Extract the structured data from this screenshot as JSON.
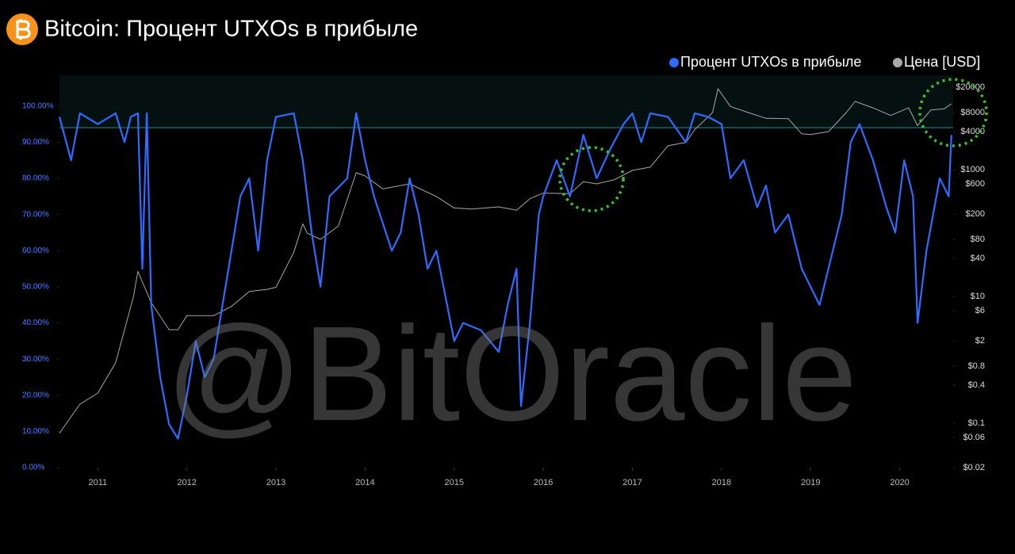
{
  "chart_data": {
    "type": "line",
    "title": "Bitcoin: Процент UTXOs в прибыле",
    "watermark": "@BitOracle",
    "xlim": [
      2010.57,
      2020.6
    ],
    "xticks": [
      2011,
      2012,
      2013,
      2014,
      2015,
      2016,
      2017,
      2018,
      2019,
      2020
    ],
    "ylim": [
      0,
      108.5
    ],
    "yticks": [
      {
        "value": 0,
        "label": "0.00%"
      },
      {
        "value": 10,
        "label": "10.00%"
      },
      {
        "value": 20,
        "label": "20.00%"
      },
      {
        "value": 30,
        "label": "30.00%"
      },
      {
        "value": 40,
        "label": "40.00%"
      },
      {
        "value": 50,
        "label": "50.00%"
      },
      {
        "value": 60,
        "label": "60.00%"
      },
      {
        "value": 70,
        "label": "70.00%"
      },
      {
        "value": 80,
        "label": "80.00%"
      },
      {
        "value": 90,
        "label": "90.00%"
      },
      {
        "value": 100,
        "label": "100.00%"
      }
    ],
    "y2lim": [
      0.02,
      31000
    ],
    "y2scale": "log",
    "y2ticks": [
      {
        "value": 0.02,
        "label": "$0.02"
      },
      {
        "value": 0.06,
        "label": "$0.06"
      },
      {
        "value": 0.1,
        "label": "$0.1"
      },
      {
        "value": 0.4,
        "label": "$0.4"
      },
      {
        "value": 0.8,
        "label": "$0.8"
      },
      {
        "value": 2,
        "label": "$2"
      },
      {
        "value": 6,
        "label": "$6"
      },
      {
        "value": 10,
        "label": "$10"
      },
      {
        "value": 40,
        "label": "$40"
      },
      {
        "value": 80,
        "label": "$80"
      },
      {
        "value": 200,
        "label": "$200"
      },
      {
        "value": 600,
        "label": "$600"
      },
      {
        "value": 1000,
        "label": "$1000"
      },
      {
        "value": 4000,
        "label": "$4000"
      },
      {
        "value": 8000,
        "label": "$8000"
      },
      {
        "value": 20000,
        "label": "$20000"
      }
    ],
    "threshold": 94,
    "threshold_color": "#2a8a8c",
    "legend": "top-right",
    "series": [
      {
        "name": "Процент UTXOs в прибыле",
        "color": "#2f6bff",
        "x": [
          2010.57,
          2010.7,
          2010.8,
          2011.0,
          2011.2,
          2011.3,
          2011.37,
          2011.45,
          2011.5,
          2011.55,
          2011.6,
          2011.7,
          2011.8,
          2011.9,
          2012.0,
          2012.1,
          2012.2,
          2012.3,
          2012.4,
          2012.5,
          2012.6,
          2012.7,
          2012.8,
          2012.9,
          2013.0,
          2013.2,
          2013.3,
          2013.4,
          2013.5,
          2013.6,
          2013.8,
          2013.9,
          2014.0,
          2014.1,
          2014.3,
          2014.4,
          2014.5,
          2014.6,
          2014.7,
          2014.8,
          2015.0,
          2015.1,
          2015.3,
          2015.5,
          2015.6,
          2015.7,
          2015.75,
          2015.85,
          2015.95,
          2016.0,
          2016.15,
          2016.3,
          2016.45,
          2016.6,
          2016.75,
          2016.9,
          2017.0,
          2017.1,
          2017.2,
          2017.4,
          2017.6,
          2017.7,
          2017.85,
          2018.0,
          2018.1,
          2018.25,
          2018.4,
          2018.5,
          2018.6,
          2018.75,
          2018.9,
          2019.0,
          2019.1,
          2019.2,
          2019.35,
          2019.45,
          2019.55,
          2019.7,
          2019.85,
          2019.95,
          2020.05,
          2020.15,
          2020.2,
          2020.3,
          2020.45,
          2020.55,
          2020.58
        ],
        "values": [
          97,
          85,
          98,
          95,
          98,
          90,
          97,
          98,
          55,
          98,
          45,
          25,
          12,
          8,
          20,
          35,
          25,
          30,
          45,
          60,
          75,
          80,
          60,
          85,
          97,
          98,
          85,
          65,
          50,
          75,
          80,
          98,
          85,
          75,
          60,
          65,
          80,
          70,
          55,
          60,
          35,
          40,
          38,
          32,
          45,
          55,
          17,
          40,
          70,
          75,
          85,
          75,
          92,
          80,
          88,
          95,
          98,
          90,
          98,
          97,
          90,
          98,
          97,
          95,
          80,
          85,
          72,
          78,
          65,
          70,
          55,
          50,
          45,
          55,
          70,
          90,
          95,
          85,
          72,
          65,
          85,
          75,
          40,
          60,
          80,
          75,
          92
        ]
      },
      {
        "name": "Цена [USD]",
        "color": "#a8a8a8",
        "axis": "y2",
        "x": [
          2010.57,
          2010.8,
          2011.0,
          2011.2,
          2011.4,
          2011.45,
          2011.6,
          2011.8,
          2011.9,
          2012.0,
          2012.3,
          2012.5,
          2012.7,
          2012.9,
          2013.0,
          2013.2,
          2013.3,
          2013.35,
          2013.5,
          2013.7,
          2013.9,
          2014.0,
          2014.2,
          2014.5,
          2014.8,
          2015.0,
          2015.2,
          2015.5,
          2015.7,
          2015.85,
          2016.0,
          2016.3,
          2016.45,
          2016.6,
          2016.8,
          2017.0,
          2017.2,
          2017.4,
          2017.6,
          2017.7,
          2017.9,
          2017.96,
          2018.1,
          2018.3,
          2018.5,
          2018.75,
          2018.9,
          2019.0,
          2019.2,
          2019.4,
          2019.5,
          2019.7,
          2019.9,
          2020.1,
          2020.2,
          2020.35,
          2020.5,
          2020.58
        ],
        "values": [
          0.07,
          0.2,
          0.3,
          0.9,
          10,
          25,
          8,
          3,
          3,
          5,
          5,
          7,
          12,
          13,
          14,
          50,
          140,
          100,
          80,
          130,
          900,
          800,
          500,
          600,
          380,
          250,
          240,
          260,
          230,
          350,
          430,
          420,
          650,
          600,
          700,
          980,
          1100,
          2400,
          2700,
          4300,
          8000,
          19000,
          10000,
          8000,
          6500,
          6400,
          3700,
          3600,
          4000,
          8000,
          12000,
          9500,
          7200,
          9500,
          5000,
          8800,
          9200,
          11000
        ]
      }
    ]
  }
}
